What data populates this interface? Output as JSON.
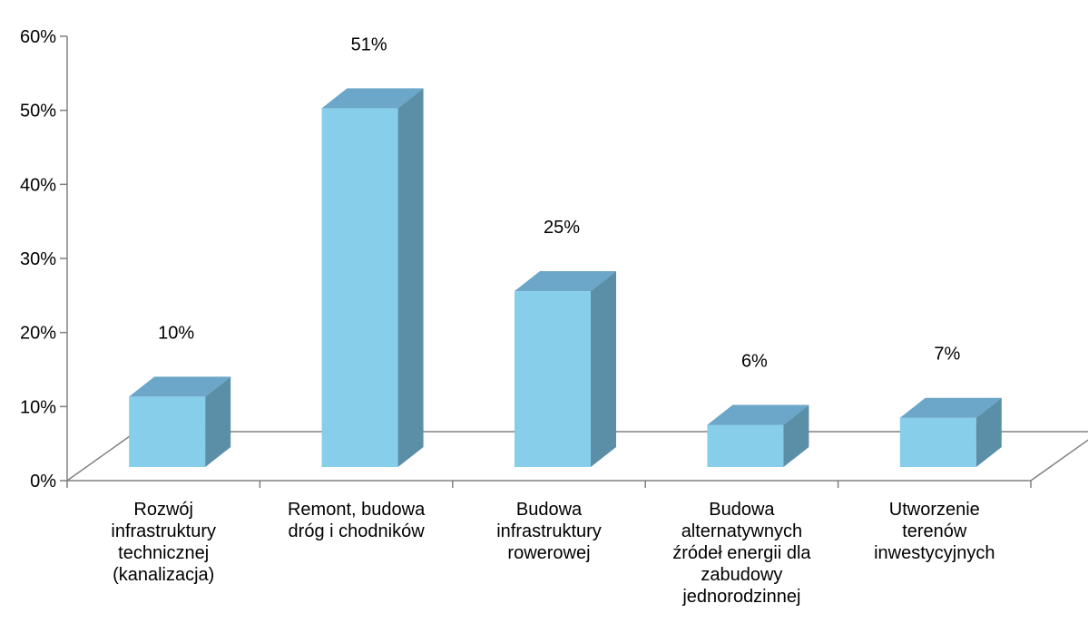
{
  "chart_data": {
    "type": "bar",
    "style": "3d-column",
    "categories": [
      [
        "Rozwój",
        "infrastruktury",
        "technicznej",
        "(kanalizacja)"
      ],
      [
        "Remont, budowa",
        "dróg i chodników"
      ],
      [
        "Budowa",
        "infrastruktury",
        "rowerowej"
      ],
      [
        "Budowa",
        "alternatywnych",
        "źródeł energii dla",
        "zabudowy",
        "jednorodzinnej"
      ],
      [
        "Utworzenie",
        "terenów",
        "inwestycyjnych"
      ]
    ],
    "values": [
      10,
      51,
      25,
      6,
      7
    ],
    "data_labels": [
      "10%",
      "51%",
      "25%",
      "6%",
      "7%"
    ],
    "y_ticks": [
      "0%",
      "10%",
      "20%",
      "30%",
      "40%",
      "50%",
      "60%"
    ],
    "ylim": [
      0,
      60
    ],
    "grid": false,
    "legend": "none",
    "colors": {
      "front": "#87CEEB",
      "top": "#6CA6C8",
      "side": "#5B8FA8",
      "axis": "#808080"
    }
  }
}
